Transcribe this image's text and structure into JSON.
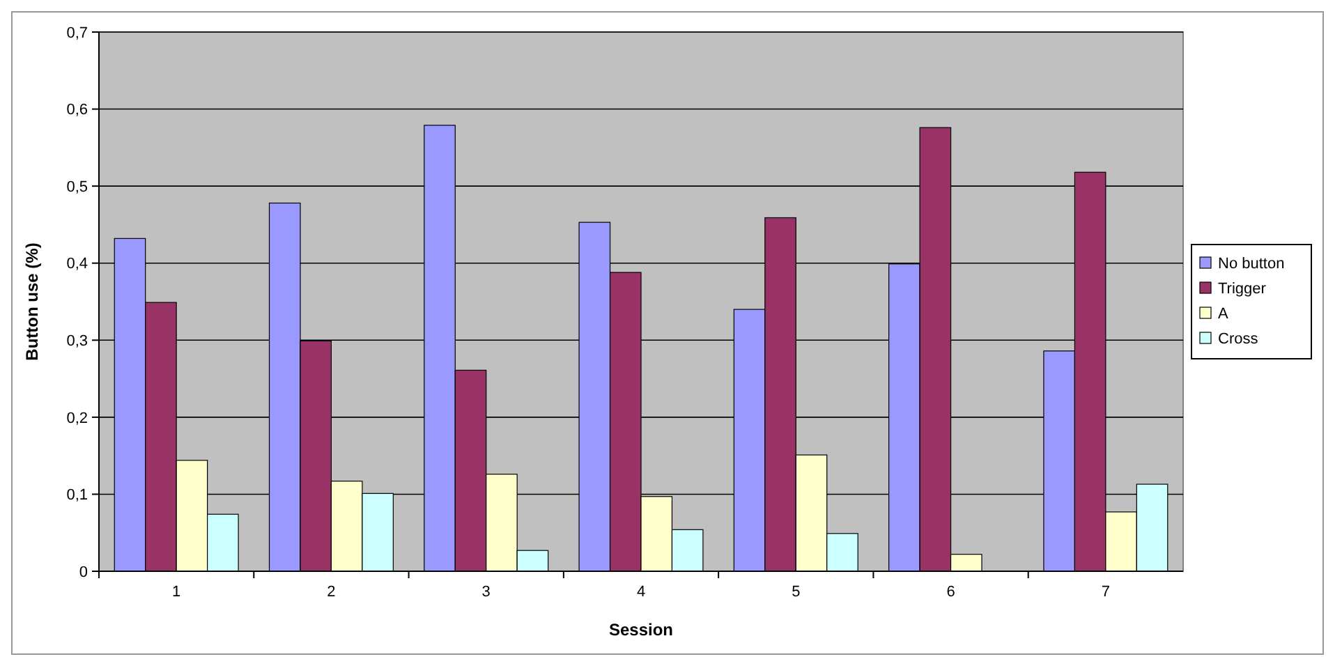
{
  "chart_data": {
    "type": "bar",
    "xlabel": "Session",
    "ylabel": "Button use (%)",
    "categories": [
      "1",
      "2",
      "3",
      "4",
      "5",
      "6",
      "7"
    ],
    "series": [
      {
        "name": "No button",
        "color": "#9999ff",
        "values": [
          0.432,
          0.478,
          0.579,
          0.453,
          0.34,
          0.399,
          0.286
        ]
      },
      {
        "name": "Trigger",
        "color": "#993366",
        "values": [
          0.349,
          0.299,
          0.261,
          0.388,
          0.459,
          0.576,
          0.518
        ]
      },
      {
        "name": "A",
        "color": "#ffffcc",
        "values": [
          0.144,
          0.117,
          0.126,
          0.097,
          0.151,
          0.022,
          0.077
        ]
      },
      {
        "name": "Cross",
        "color": "#ccffff",
        "values": [
          0.074,
          0.101,
          0.027,
          0.054,
          0.049,
          0,
          0.113
        ]
      }
    ],
    "ylim": [
      0,
      0.7
    ],
    "yticks": [
      0,
      {
        "value": 0.1,
        "label": "0,1"
      },
      {
        "value": 0.2,
        "label": "0,2"
      },
      {
        "value": 0.3,
        "label": "0,3"
      },
      {
        "value": 0.4,
        "label": "0,4"
      },
      {
        "value": 0.5,
        "label": "0,5"
      },
      {
        "value": 0.6,
        "label": "0,6"
      },
      {
        "value": 0.7,
        "label": "0,7"
      }
    ],
    "grid": "y",
    "legend": "right"
  }
}
